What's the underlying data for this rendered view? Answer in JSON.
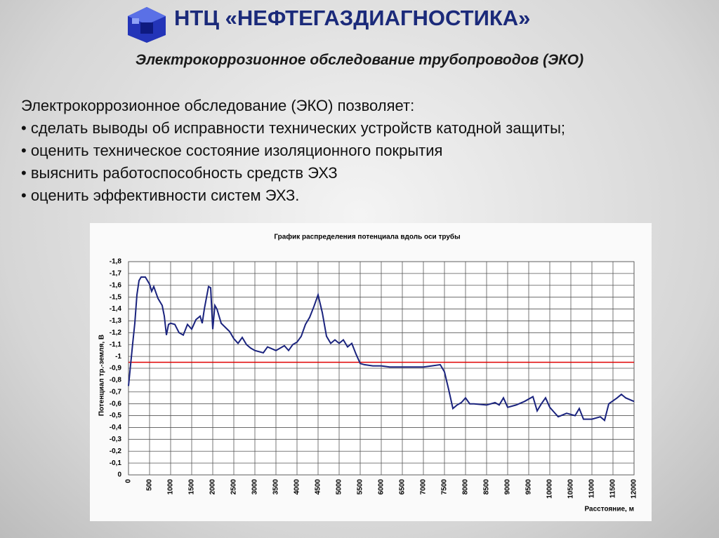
{
  "header": {
    "title": "НТЦ «НЕФТЕГАЗДИАГНОСТИКА»",
    "subtitle": "Электрокоррозионное обследование трубопроводов (ЭКО)"
  },
  "body": {
    "lines": [
      "Электрокоррозионное обследование (ЭКО) позволяет:",
      "• сделать выводы об исправности технических устройств катодной защиты;",
      "• оценить техническое состояние изоляционного покрытия",
      "• выяснить работоспособность средств ЭХЗ",
      "• оценить эффективности систем ЭХЗ."
    ]
  },
  "chart_data": {
    "type": "line",
    "title": "График распределения потенциала вдоль оси трубы",
    "x_label": "Расстояние, м",
    "y_label": "Потенциал тр.-земля, В",
    "color": "#1a237e",
    "grid": true,
    "x": [
      0,
      50,
      100,
      150,
      200,
      250,
      300,
      400,
      500,
      550,
      600,
      700,
      800,
      850,
      900,
      950,
      1000,
      1100,
      1200,
      1300,
      1400,
      1500,
      1600,
      1700,
      1750,
      1800,
      1900,
      1950,
      2000,
      2050,
      2100,
      2200,
      2400,
      2500,
      2600,
      2700,
      2800,
      2900,
      3000,
      3200,
      3300,
      3500,
      3700,
      3800,
      3900,
      4000,
      4100,
      4200,
      4300,
      4400,
      4500,
      4600,
      4700,
      4800,
      4900,
      5000,
      5100,
      5200,
      5300,
      5400,
      5500,
      5600,
      5800,
      6000,
      6200,
      6500,
      7000,
      7200,
      7400,
      7500,
      7600,
      7700,
      7800,
      7900,
      8000,
      8100,
      8200,
      8500,
      8700,
      8800,
      8900,
      9000,
      9200,
      9400,
      9600,
      9700,
      9800,
      9900,
      10000,
      10100,
      10200,
      10400,
      10600,
      10700,
      10800,
      11000,
      11200,
      11300,
      11400,
      11600,
      11700,
      11800,
      12000
    ],
    "values": [
      -0.75,
      -0.93,
      -1.11,
      -1.28,
      -1.52,
      -1.64,
      -1.67,
      -1.67,
      -1.61,
      -1.55,
      -1.59,
      -1.49,
      -1.43,
      -1.34,
      -1.18,
      -1.27,
      -1.28,
      -1.27,
      -1.2,
      -1.18,
      -1.27,
      -1.23,
      -1.31,
      -1.34,
      -1.28,
      -1.4,
      -1.59,
      -1.58,
      -1.23,
      -1.43,
      -1.4,
      -1.28,
      -1.21,
      -1.15,
      -1.11,
      -1.16,
      -1.1,
      -1.07,
      -1.05,
      -1.03,
      -1.08,
      -1.05,
      -1.09,
      -1.05,
      -1.1,
      -1.12,
      -1.17,
      -1.27,
      -1.33,
      -1.42,
      -1.52,
      -1.37,
      -1.17,
      -1.11,
      -1.14,
      -1.11,
      -1.14,
      -1.08,
      -1.11,
      -1.02,
      -0.94,
      -0.93,
      -0.92,
      -0.92,
      -0.91,
      -0.91,
      -0.91,
      -0.92,
      -0.93,
      -0.87,
      -0.72,
      -0.56,
      -0.59,
      -0.61,
      -0.65,
      -0.6,
      -0.6,
      -0.59,
      -0.61,
      -0.59,
      -0.65,
      -0.57,
      -0.59,
      -0.62,
      -0.66,
      -0.54,
      -0.6,
      -0.65,
      -0.57,
      -0.53,
      -0.49,
      -0.52,
      -0.5,
      -0.56,
      -0.47,
      -0.47,
      -0.49,
      -0.46,
      -0.6,
      -0.65,
      -0.68,
      -0.65,
      -0.62
    ],
    "reference_line": {
      "value": -0.95,
      "color": "#e00000"
    },
    "xlim": [
      0,
      12000
    ],
    "xticks": [
      0,
      500,
      1000,
      1500,
      2000,
      2500,
      3000,
      3500,
      4000,
      4500,
      5000,
      5500,
      6000,
      6500,
      7000,
      7500,
      8000,
      8500,
      9000,
      9500,
      10000,
      10500,
      11000,
      11500,
      12000
    ],
    "ylim": [
      0,
      -1.8
    ],
    "yticks": [
      {
        "value": -1.8,
        "label": "-1,8"
      },
      {
        "value": -1.7,
        "label": "-1,7"
      },
      {
        "value": -1.6,
        "label": "-1,6"
      },
      {
        "value": -1.5,
        "label": "-1,5"
      },
      {
        "value": -1.4,
        "label": "-1,4"
      },
      {
        "value": -1.3,
        "label": "-1,3"
      },
      {
        "value": -1.2,
        "label": "-1,2"
      },
      {
        "value": -1.1,
        "label": "-1,1"
      },
      -1,
      {
        "value": -0.9,
        "label": "-0,9"
      },
      {
        "value": -0.8,
        "label": "-0,8"
      },
      {
        "value": -0.7,
        "label": "-0,7"
      },
      {
        "value": -0.6,
        "label": "-0,6"
      },
      {
        "value": -0.5,
        "label": "-0,5"
      },
      {
        "value": -0.4,
        "label": "-0,4"
      },
      {
        "value": -0.3,
        "label": "-0,3"
      },
      {
        "value": -0.2,
        "label": "-0,2"
      },
      {
        "value": -0.1,
        "label": "-0,1"
      },
      0
    ]
  }
}
